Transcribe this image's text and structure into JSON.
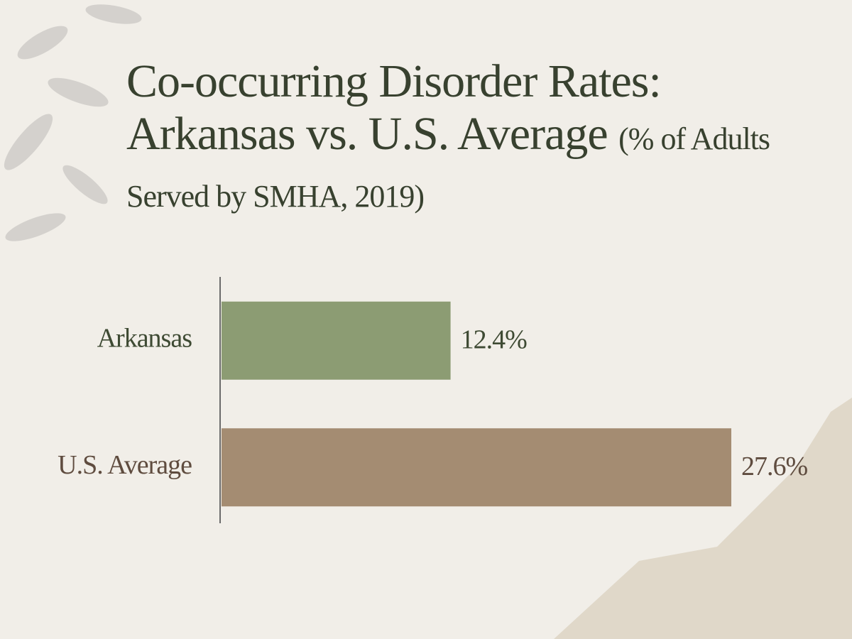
{
  "chart_data": {
    "type": "hbar",
    "title": "Co-occurring Disorder Rates: Arkansas vs. U.S. Average",
    "subtitle": "(% of Adults Served by SMHA, 2019)",
    "categories": [
      "Arkansas",
      "U.S. Average"
    ],
    "values": [
      12.4,
      27.6
    ],
    "value_labels": [
      "12.4%",
      "27.6%"
    ],
    "colors": [
      "#8c9c73",
      "#a48c72"
    ],
    "label_colors": [
      "#3e4a33",
      "#5f4c3f"
    ]
  }
}
